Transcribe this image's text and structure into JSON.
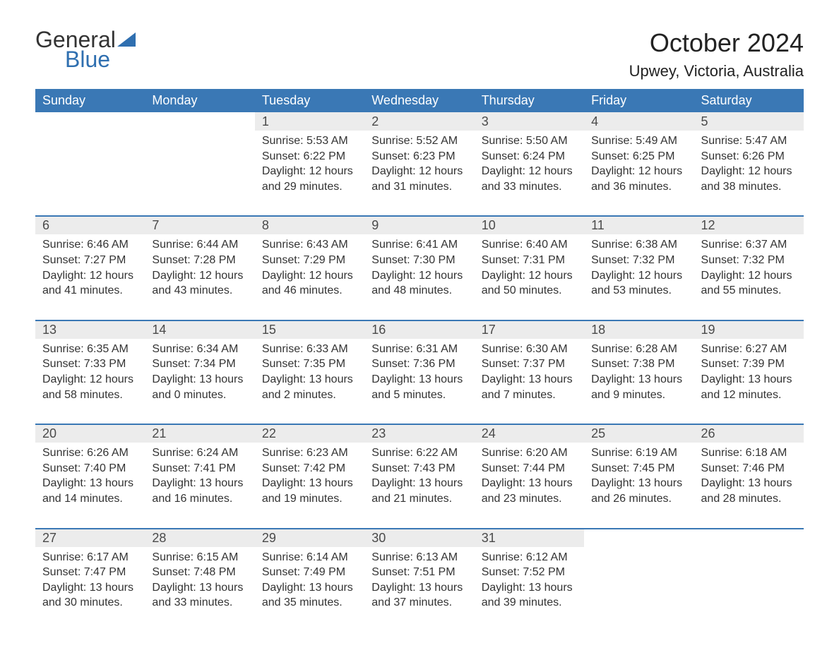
{
  "logo": {
    "text1": "General",
    "text2": "Blue",
    "color_primary": "#333333",
    "color_accent": "#2f6fb0"
  },
  "title": "October 2024",
  "location": "Upwey, Victoria, Australia",
  "header_bg": "#3a78b5",
  "daynum_bg": "#ececec",
  "page_bg": "#ffffff",
  "weekdays": [
    "Sunday",
    "Monday",
    "Tuesday",
    "Wednesday",
    "Thursday",
    "Friday",
    "Saturday"
  ],
  "weeks": [
    [
      null,
      null,
      {
        "n": "1",
        "sunrise": "Sunrise: 5:53 AM",
        "sunset": "Sunset: 6:22 PM",
        "daylight1": "Daylight: 12 hours",
        "daylight2": "and 29 minutes."
      },
      {
        "n": "2",
        "sunrise": "Sunrise: 5:52 AM",
        "sunset": "Sunset: 6:23 PM",
        "daylight1": "Daylight: 12 hours",
        "daylight2": "and 31 minutes."
      },
      {
        "n": "3",
        "sunrise": "Sunrise: 5:50 AM",
        "sunset": "Sunset: 6:24 PM",
        "daylight1": "Daylight: 12 hours",
        "daylight2": "and 33 minutes."
      },
      {
        "n": "4",
        "sunrise": "Sunrise: 5:49 AM",
        "sunset": "Sunset: 6:25 PM",
        "daylight1": "Daylight: 12 hours",
        "daylight2": "and 36 minutes."
      },
      {
        "n": "5",
        "sunrise": "Sunrise: 5:47 AM",
        "sunset": "Sunset: 6:26 PM",
        "daylight1": "Daylight: 12 hours",
        "daylight2": "and 38 minutes."
      }
    ],
    [
      {
        "n": "6",
        "sunrise": "Sunrise: 6:46 AM",
        "sunset": "Sunset: 7:27 PM",
        "daylight1": "Daylight: 12 hours",
        "daylight2": "and 41 minutes."
      },
      {
        "n": "7",
        "sunrise": "Sunrise: 6:44 AM",
        "sunset": "Sunset: 7:28 PM",
        "daylight1": "Daylight: 12 hours",
        "daylight2": "and 43 minutes."
      },
      {
        "n": "8",
        "sunrise": "Sunrise: 6:43 AM",
        "sunset": "Sunset: 7:29 PM",
        "daylight1": "Daylight: 12 hours",
        "daylight2": "and 46 minutes."
      },
      {
        "n": "9",
        "sunrise": "Sunrise: 6:41 AM",
        "sunset": "Sunset: 7:30 PM",
        "daylight1": "Daylight: 12 hours",
        "daylight2": "and 48 minutes."
      },
      {
        "n": "10",
        "sunrise": "Sunrise: 6:40 AM",
        "sunset": "Sunset: 7:31 PM",
        "daylight1": "Daylight: 12 hours",
        "daylight2": "and 50 minutes."
      },
      {
        "n": "11",
        "sunrise": "Sunrise: 6:38 AM",
        "sunset": "Sunset: 7:32 PM",
        "daylight1": "Daylight: 12 hours",
        "daylight2": "and 53 minutes."
      },
      {
        "n": "12",
        "sunrise": "Sunrise: 6:37 AM",
        "sunset": "Sunset: 7:32 PM",
        "daylight1": "Daylight: 12 hours",
        "daylight2": "and 55 minutes."
      }
    ],
    [
      {
        "n": "13",
        "sunrise": "Sunrise: 6:35 AM",
        "sunset": "Sunset: 7:33 PM",
        "daylight1": "Daylight: 12 hours",
        "daylight2": "and 58 minutes."
      },
      {
        "n": "14",
        "sunrise": "Sunrise: 6:34 AM",
        "sunset": "Sunset: 7:34 PM",
        "daylight1": "Daylight: 13 hours",
        "daylight2": "and 0 minutes."
      },
      {
        "n": "15",
        "sunrise": "Sunrise: 6:33 AM",
        "sunset": "Sunset: 7:35 PM",
        "daylight1": "Daylight: 13 hours",
        "daylight2": "and 2 minutes."
      },
      {
        "n": "16",
        "sunrise": "Sunrise: 6:31 AM",
        "sunset": "Sunset: 7:36 PM",
        "daylight1": "Daylight: 13 hours",
        "daylight2": "and 5 minutes."
      },
      {
        "n": "17",
        "sunrise": "Sunrise: 6:30 AM",
        "sunset": "Sunset: 7:37 PM",
        "daylight1": "Daylight: 13 hours",
        "daylight2": "and 7 minutes."
      },
      {
        "n": "18",
        "sunrise": "Sunrise: 6:28 AM",
        "sunset": "Sunset: 7:38 PM",
        "daylight1": "Daylight: 13 hours",
        "daylight2": "and 9 minutes."
      },
      {
        "n": "19",
        "sunrise": "Sunrise: 6:27 AM",
        "sunset": "Sunset: 7:39 PM",
        "daylight1": "Daylight: 13 hours",
        "daylight2": "and 12 minutes."
      }
    ],
    [
      {
        "n": "20",
        "sunrise": "Sunrise: 6:26 AM",
        "sunset": "Sunset: 7:40 PM",
        "daylight1": "Daylight: 13 hours",
        "daylight2": "and 14 minutes."
      },
      {
        "n": "21",
        "sunrise": "Sunrise: 6:24 AM",
        "sunset": "Sunset: 7:41 PM",
        "daylight1": "Daylight: 13 hours",
        "daylight2": "and 16 minutes."
      },
      {
        "n": "22",
        "sunrise": "Sunrise: 6:23 AM",
        "sunset": "Sunset: 7:42 PM",
        "daylight1": "Daylight: 13 hours",
        "daylight2": "and 19 minutes."
      },
      {
        "n": "23",
        "sunrise": "Sunrise: 6:22 AM",
        "sunset": "Sunset: 7:43 PM",
        "daylight1": "Daylight: 13 hours",
        "daylight2": "and 21 minutes."
      },
      {
        "n": "24",
        "sunrise": "Sunrise: 6:20 AM",
        "sunset": "Sunset: 7:44 PM",
        "daylight1": "Daylight: 13 hours",
        "daylight2": "and 23 minutes."
      },
      {
        "n": "25",
        "sunrise": "Sunrise: 6:19 AM",
        "sunset": "Sunset: 7:45 PM",
        "daylight1": "Daylight: 13 hours",
        "daylight2": "and 26 minutes."
      },
      {
        "n": "26",
        "sunrise": "Sunrise: 6:18 AM",
        "sunset": "Sunset: 7:46 PM",
        "daylight1": "Daylight: 13 hours",
        "daylight2": "and 28 minutes."
      }
    ],
    [
      {
        "n": "27",
        "sunrise": "Sunrise: 6:17 AM",
        "sunset": "Sunset: 7:47 PM",
        "daylight1": "Daylight: 13 hours",
        "daylight2": "and 30 minutes."
      },
      {
        "n": "28",
        "sunrise": "Sunrise: 6:15 AM",
        "sunset": "Sunset: 7:48 PM",
        "daylight1": "Daylight: 13 hours",
        "daylight2": "and 33 minutes."
      },
      {
        "n": "29",
        "sunrise": "Sunrise: 6:14 AM",
        "sunset": "Sunset: 7:49 PM",
        "daylight1": "Daylight: 13 hours",
        "daylight2": "and 35 minutes."
      },
      {
        "n": "30",
        "sunrise": "Sunrise: 6:13 AM",
        "sunset": "Sunset: 7:51 PM",
        "daylight1": "Daylight: 13 hours",
        "daylight2": "and 37 minutes."
      },
      {
        "n": "31",
        "sunrise": "Sunrise: 6:12 AM",
        "sunset": "Sunset: 7:52 PM",
        "daylight1": "Daylight: 13 hours",
        "daylight2": "and 39 minutes."
      },
      null,
      null
    ]
  ]
}
